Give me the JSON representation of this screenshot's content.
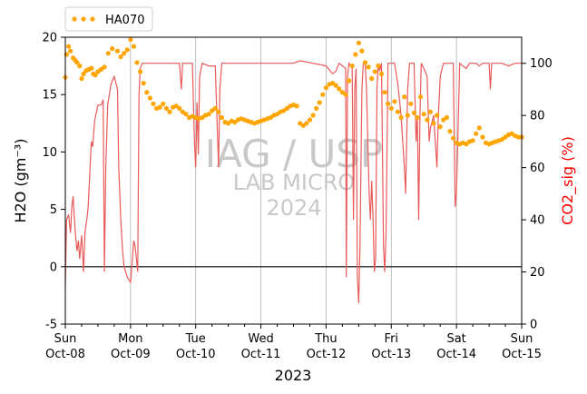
{
  "chart_data": {
    "type": "scatter",
    "xlabel": "2023",
    "ylabel_left": "H2O (gm⁻³)",
    "ylabel_right": "CO2_sig (%)",
    "ylim_left": [
      -5,
      20
    ],
    "ylim_right": [
      0,
      110
    ],
    "yticks_left": [
      -5,
      0,
      5,
      10,
      15,
      20
    ],
    "yticks_right": [
      0,
      20,
      40,
      60,
      80,
      100
    ],
    "x_range_days": [
      0,
      7
    ],
    "x_ticks": [
      {
        "day": 0,
        "label1": "Sun",
        "label2": "Oct-08"
      },
      {
        "day": 1,
        "label1": "Mon",
        "label2": "Oct-09"
      },
      {
        "day": 2,
        "label1": "Tue",
        "label2": "Oct-10"
      },
      {
        "day": 3,
        "label1": "Wed",
        "label2": "Oct-11"
      },
      {
        "day": 4,
        "label1": "Thu",
        "label2": "Oct-12"
      },
      {
        "day": 5,
        "label1": "Fri",
        "label2": "Oct-13"
      },
      {
        "day": 6,
        "label1": "Sat",
        "label2": "Oct-14"
      },
      {
        "day": 7,
        "label1": "Sun",
        "label2": "Oct-15"
      }
    ],
    "legend": {
      "label": "HA070",
      "placement": "top-left (above axes)"
    },
    "grid": "vertical",
    "series": [
      {
        "name": "HA070",
        "axis": "left",
        "style": "points",
        "color": "#ffa500",
        "points": [
          [
            0.0,
            16.5
          ],
          [
            0.02,
            18.5
          ],
          [
            0.05,
            19.2
          ],
          [
            0.08,
            18.8
          ],
          [
            0.12,
            18.2
          ],
          [
            0.15,
            18.0
          ],
          [
            0.18,
            17.8
          ],
          [
            0.22,
            17.5
          ],
          [
            0.25,
            16.4
          ],
          [
            0.28,
            16.8
          ],
          [
            0.32,
            17.1
          ],
          [
            0.36,
            17.2
          ],
          [
            0.4,
            17.3
          ],
          [
            0.43,
            16.8
          ],
          [
            0.46,
            16.7
          ],
          [
            0.5,
            17.0
          ],
          [
            0.55,
            17.2
          ],
          [
            0.6,
            17.4
          ],
          [
            0.66,
            18.6
          ],
          [
            0.72,
            19.0
          ],
          [
            0.8,
            18.8
          ],
          [
            0.85,
            18.3
          ],
          [
            0.9,
            18.6
          ],
          [
            0.95,
            18.9
          ],
          [
            1.0,
            19.8
          ],
          [
            1.05,
            19.2
          ],
          [
            1.1,
            17.8
          ],
          [
            1.15,
            17.0
          ],
          [
            1.2,
            16.0
          ],
          [
            1.25,
            15.2
          ],
          [
            1.3,
            14.7
          ],
          [
            1.35,
            14.2
          ],
          [
            1.4,
            13.8
          ],
          [
            1.45,
            13.9
          ],
          [
            1.5,
            14.2
          ],
          [
            1.55,
            13.8
          ],
          [
            1.6,
            13.5
          ],
          [
            1.65,
            13.9
          ],
          [
            1.7,
            14.0
          ],
          [
            1.75,
            13.8
          ],
          [
            1.8,
            13.5
          ],
          [
            1.85,
            13.3
          ],
          [
            1.9,
            13.0
          ],
          [
            1.95,
            13.1
          ],
          [
            2.0,
            13.0
          ],
          [
            2.05,
            12.9
          ],
          [
            2.1,
            13.0
          ],
          [
            2.15,
            13.2
          ],
          [
            2.2,
            13.3
          ],
          [
            2.25,
            13.6
          ],
          [
            2.3,
            13.8
          ],
          [
            2.35,
            13.5
          ],
          [
            2.4,
            13.0
          ],
          [
            2.45,
            12.6
          ],
          [
            2.5,
            12.5
          ],
          [
            2.55,
            12.7
          ],
          [
            2.6,
            12.6
          ],
          [
            2.65,
            12.8
          ],
          [
            2.7,
            12.9
          ],
          [
            2.75,
            12.8
          ],
          [
            2.8,
            12.7
          ],
          [
            2.85,
            12.6
          ],
          [
            2.9,
            12.5
          ],
          [
            2.95,
            12.6
          ],
          [
            3.0,
            12.7
          ],
          [
            3.05,
            12.8
          ],
          [
            3.1,
            12.9
          ],
          [
            3.15,
            13.0
          ],
          [
            3.2,
            13.2
          ],
          [
            3.25,
            13.3
          ],
          [
            3.3,
            13.5
          ],
          [
            3.35,
            13.6
          ],
          [
            3.4,
            13.8
          ],
          [
            3.45,
            14.0
          ],
          [
            3.5,
            14.1
          ],
          [
            3.55,
            14.0
          ],
          [
            3.6,
            12.5
          ],
          [
            3.65,
            12.3
          ],
          [
            3.7,
            12.5
          ],
          [
            3.75,
            12.8
          ],
          [
            3.8,
            13.2
          ],
          [
            3.85,
            13.8
          ],
          [
            3.9,
            14.3
          ],
          [
            3.95,
            15.0
          ],
          [
            4.0,
            15.6
          ],
          [
            4.05,
            15.9
          ],
          [
            4.1,
            16.0
          ],
          [
            4.15,
            15.8
          ],
          [
            4.2,
            15.5
          ],
          [
            4.25,
            15.2
          ],
          [
            4.3,
            15.0
          ],
          [
            4.35,
            16.2
          ],
          [
            4.4,
            17.5
          ],
          [
            4.45,
            18.5
          ],
          [
            4.5,
            19.5
          ],
          [
            4.55,
            18.8
          ],
          [
            4.6,
            17.8
          ],
          [
            4.65,
            17.4
          ],
          [
            4.7,
            16.4
          ],
          [
            4.75,
            17.0
          ],
          [
            4.8,
            17.5
          ],
          [
            4.85,
            16.8
          ],
          [
            4.9,
            15.2
          ],
          [
            4.95,
            14.2
          ],
          [
            5.0,
            13.8
          ],
          [
            5.05,
            14.4
          ],
          [
            5.1,
            13.5
          ],
          [
            5.15,
            13.0
          ],
          [
            5.2,
            14.8
          ],
          [
            5.25,
            13.2
          ],
          [
            5.3,
            14.2
          ],
          [
            5.35,
            13.4
          ],
          [
            5.4,
            13.0
          ],
          [
            5.45,
            14.8
          ],
          [
            5.5,
            13.3
          ],
          [
            5.55,
            12.8
          ],
          [
            5.6,
            13.5
          ],
          [
            5.65,
            12.5
          ],
          [
            5.7,
            13.2
          ],
          [
            5.75,
            12.2
          ],
          [
            5.8,
            12.8
          ],
          [
            5.85,
            13.0
          ],
          [
            5.9,
            11.8
          ],
          [
            5.95,
            11.2
          ],
          [
            6.0,
            10.8
          ],
          [
            6.05,
            10.7
          ],
          [
            6.1,
            10.8
          ],
          [
            6.15,
            10.7
          ],
          [
            6.2,
            10.9
          ],
          [
            6.25,
            11.0
          ],
          [
            6.3,
            11.6
          ],
          [
            6.35,
            12.1
          ],
          [
            6.4,
            11.3
          ],
          [
            6.45,
            10.8
          ],
          [
            6.5,
            10.7
          ],
          [
            6.55,
            10.8
          ],
          [
            6.6,
            10.9
          ],
          [
            6.65,
            11.0
          ],
          [
            6.7,
            11.1
          ],
          [
            6.75,
            11.3
          ],
          [
            6.8,
            11.5
          ],
          [
            6.85,
            11.6
          ],
          [
            6.9,
            11.4
          ],
          [
            6.95,
            11.3
          ],
          [
            7.0,
            11.3
          ]
        ]
      },
      {
        "axis": "right",
        "style": "line",
        "color": "#e85a5a",
        "points": [
          [
            0.0,
            15
          ],
          [
            0.02,
            40
          ],
          [
            0.05,
            42
          ],
          [
            0.08,
            35
          ],
          [
            0.1,
            45
          ],
          [
            0.12,
            49
          ],
          [
            0.15,
            36
          ],
          [
            0.18,
            28
          ],
          [
            0.2,
            32
          ],
          [
            0.22,
            25
          ],
          [
            0.25,
            34
          ],
          [
            0.28,
            20
          ],
          [
            0.3,
            35
          ],
          [
            0.33,
            40
          ],
          [
            0.35,
            45
          ],
          [
            0.38,
            60
          ],
          [
            0.4,
            70
          ],
          [
            0.42,
            68
          ],
          [
            0.45,
            78
          ],
          [
            0.5,
            84
          ],
          [
            0.55,
            84
          ],
          [
            0.58,
            86
          ],
          [
            0.6,
            20
          ],
          [
            0.62,
            60
          ],
          [
            0.65,
            84
          ],
          [
            0.7,
            92
          ],
          [
            0.75,
            95
          ],
          [
            0.8,
            90
          ],
          [
            0.82,
            60
          ],
          [
            0.85,
            40
          ],
          [
            0.88,
            28
          ],
          [
            0.9,
            22
          ],
          [
            0.95,
            18
          ],
          [
            1.0,
            16
          ],
          [
            1.02,
            22
          ],
          [
            1.05,
            32
          ],
          [
            1.07,
            30
          ],
          [
            1.09,
            25
          ],
          [
            1.11,
            20
          ],
          [
            1.13,
            88
          ],
          [
            1.15,
            98
          ],
          [
            1.18,
            100
          ],
          [
            1.3,
            100
          ],
          [
            1.5,
            100
          ],
          [
            1.75,
            100
          ],
          [
            1.78,
            90
          ],
          [
            1.8,
            100
          ],
          [
            1.95,
            100
          ],
          [
            1.98,
            70
          ],
          [
            2.0,
            60
          ],
          [
            2.02,
            85
          ],
          [
            2.04,
            65
          ],
          [
            2.06,
            95
          ],
          [
            2.1,
            100
          ],
          [
            2.2,
            99
          ],
          [
            2.3,
            99
          ],
          [
            2.35,
            60
          ],
          [
            2.37,
            90
          ],
          [
            2.4,
            100
          ],
          [
            2.6,
            100
          ],
          [
            2.8,
            100
          ],
          [
            3.0,
            100
          ],
          [
            3.2,
            100
          ],
          [
            3.4,
            100
          ],
          [
            3.5,
            100
          ],
          [
            3.6,
            101
          ],
          [
            3.8,
            100
          ],
          [
            4.0,
            99
          ],
          [
            4.1,
            96
          ],
          [
            4.15,
            97
          ],
          [
            4.2,
            100
          ],
          [
            4.25,
            99
          ],
          [
            4.3,
            98
          ],
          [
            4.31,
            18
          ],
          [
            4.33,
            95
          ],
          [
            4.35,
            100
          ],
          [
            4.4,
            98
          ],
          [
            4.42,
            40
          ],
          [
            4.44,
            90
          ],
          [
            4.46,
            98
          ],
          [
            4.48,
            18
          ],
          [
            4.5,
            8
          ],
          [
            4.52,
            30
          ],
          [
            4.55,
            90
          ],
          [
            4.57,
            100
          ],
          [
            4.6,
            100
          ],
          [
            4.62,
            90
          ],
          [
            4.64,
            70
          ],
          [
            4.66,
            50
          ],
          [
            4.68,
            40
          ],
          [
            4.7,
            55
          ],
          [
            4.72,
            40
          ],
          [
            4.74,
            20
          ],
          [
            4.76,
            25
          ],
          [
            4.78,
            90
          ],
          [
            4.8,
            100
          ],
          [
            4.82,
            97
          ],
          [
            4.85,
            100
          ],
          [
            4.88,
            30
          ],
          [
            4.9,
            20
          ],
          [
            4.92,
            35
          ],
          [
            4.95,
            100
          ],
          [
            5.0,
            100
          ],
          [
            5.05,
            100
          ],
          [
            5.1,
            92
          ],
          [
            5.15,
            80
          ],
          [
            5.2,
            60
          ],
          [
            5.22,
            50
          ],
          [
            5.25,
            90
          ],
          [
            5.28,
            100
          ],
          [
            5.35,
            100
          ],
          [
            5.38,
            70
          ],
          [
            5.4,
            80
          ],
          [
            5.42,
            40
          ],
          [
            5.44,
            80
          ],
          [
            5.46,
            100
          ],
          [
            5.5,
            98
          ],
          [
            5.55,
            95
          ],
          [
            5.58,
            70
          ],
          [
            5.6,
            75
          ],
          [
            5.65,
            80
          ],
          [
            5.7,
            60
          ],
          [
            5.72,
            78
          ],
          [
            5.75,
            95
          ],
          [
            5.8,
            100
          ],
          [
            5.9,
            100
          ],
          [
            5.95,
            100
          ],
          [
            5.98,
            45
          ],
          [
            6.0,
            50
          ],
          [
            6.05,
            100
          ],
          [
            6.15,
            98
          ],
          [
            6.2,
            100
          ],
          [
            6.25,
            100
          ],
          [
            6.3,
            100
          ],
          [
            6.35,
            99
          ],
          [
            6.4,
            100
          ],
          [
            6.5,
            100
          ],
          [
            6.52,
            90
          ],
          [
            6.54,
            100
          ],
          [
            6.6,
            100
          ],
          [
            6.7,
            100
          ],
          [
            6.8,
            99
          ],
          [
            6.9,
            100
          ],
          [
            7.0,
            100
          ]
        ]
      }
    ],
    "hline_left": 0,
    "watermark": [
      "IAG / USP",
      "LAB MICRO",
      "2024"
    ]
  }
}
